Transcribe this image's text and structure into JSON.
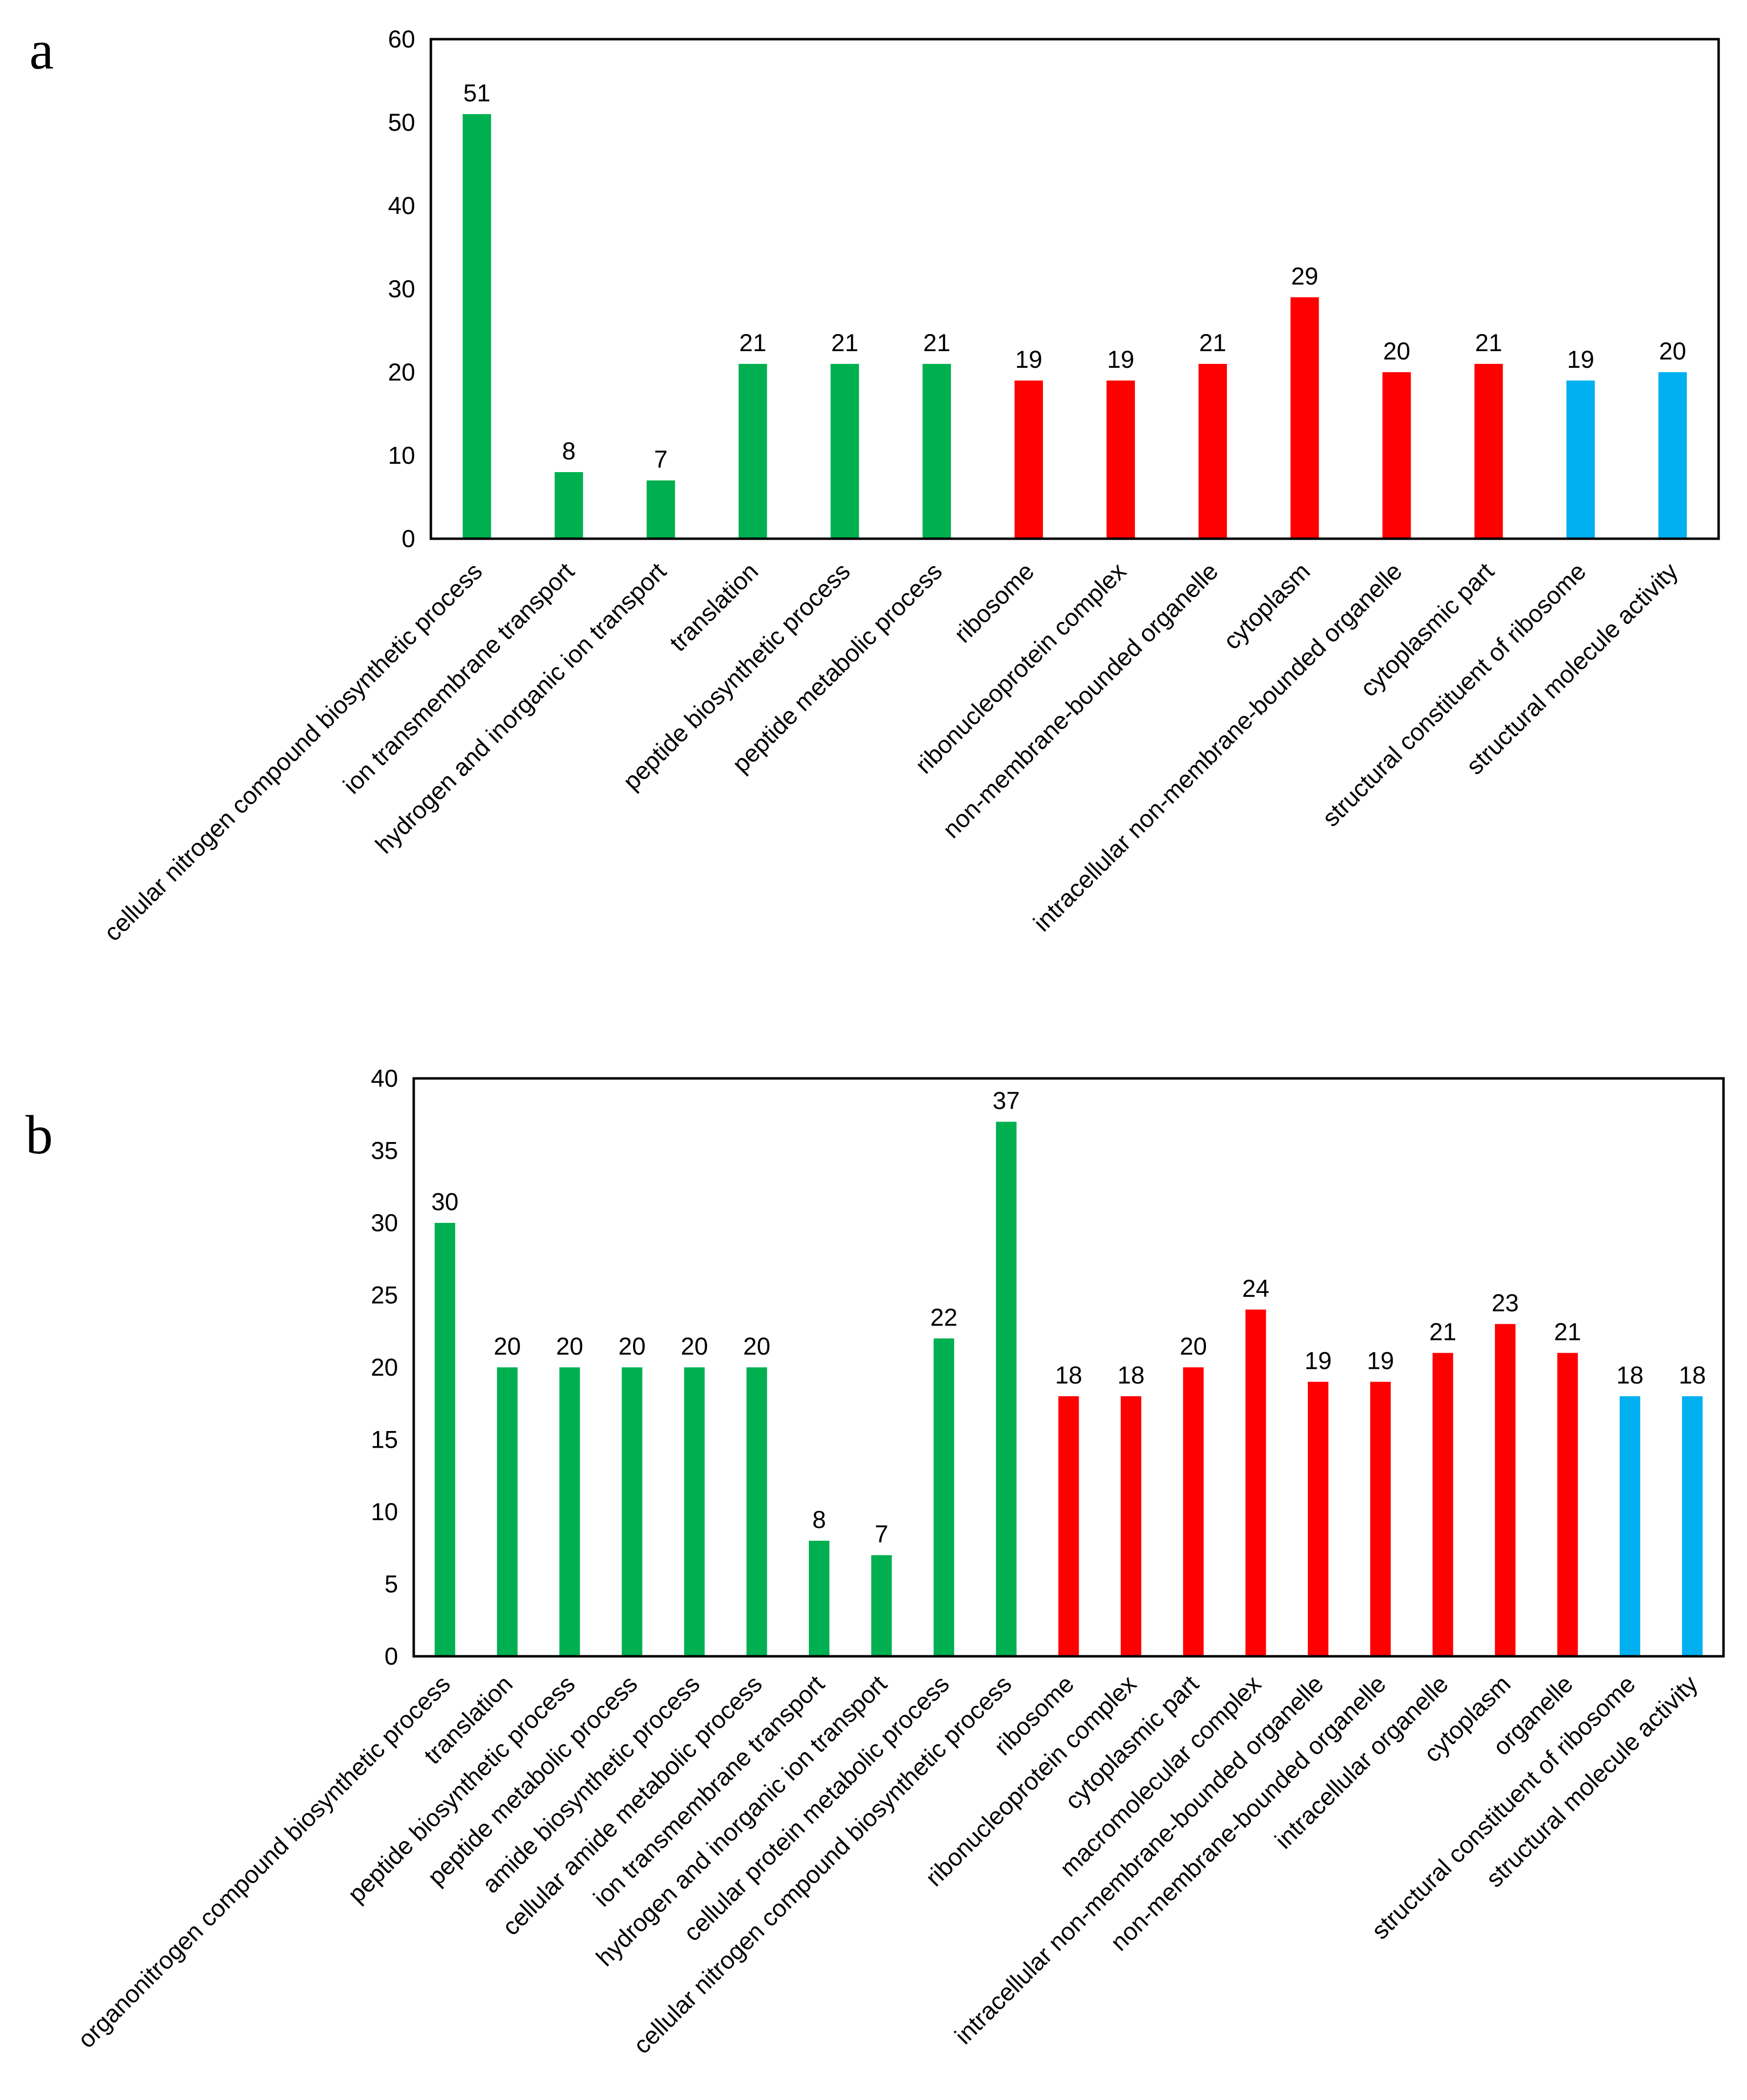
{
  "chart_data": [
    {
      "panel": "a",
      "type": "bar",
      "title": "",
      "xlabel": "",
      "ylabel": "",
      "ylim": [
        0,
        60
      ],
      "yticks": [
        0,
        10,
        20,
        30,
        40,
        50,
        60
      ],
      "grid": false,
      "categories": [
        "cellular nitrogen compound biosynthetic process",
        "ion transmembrane transport",
        "hydrogen and inorganic ion transport",
        "translation",
        "peptide biosynthetic process",
        "peptide metabolic process",
        "ribosome",
        "ribonucleoprotein complex",
        "non-membrane-bounded organelle",
        "cytoplasm",
        "intracellular non-membrane-bounded organelle",
        "cytoplasmic part",
        "structural constituent of ribosome",
        "structural molecule activity"
      ],
      "values": [
        51,
        8,
        7,
        21,
        21,
        21,
        19,
        19,
        21,
        29,
        20,
        21,
        19,
        20
      ],
      "groups": [
        "bp",
        "bp",
        "bp",
        "bp",
        "bp",
        "bp",
        "cc",
        "cc",
        "cc",
        "cc",
        "cc",
        "cc",
        "mf",
        "mf"
      ]
    },
    {
      "panel": "b",
      "type": "bar",
      "title": "",
      "xlabel": "",
      "ylabel": "",
      "ylim": [
        0,
        40
      ],
      "yticks": [
        0,
        5,
        10,
        15,
        20,
        25,
        30,
        35,
        40
      ],
      "grid": false,
      "categories": [
        "organonitrogen compound biosynthetic process",
        "translation",
        "peptide biosynthetic process",
        "peptide metabolic process",
        "amide biosynthetic process",
        "cellular amide metabolic process",
        "ion transmembrane transport",
        "hydrogen and inorganic ion transport",
        "cellular protein metabolic process",
        "cellular nitrogen compound biosynthetic process",
        "ribosome",
        "ribonucleoprotein complex",
        "cytoplasmic part",
        "macromolecular complex",
        "intracellular non-membrane-bounded organelle",
        "non-membrane-bounded organelle",
        "intracellular organelle",
        "cytoplasm",
        "organelle",
        "structural constituent of ribosome",
        "structural molecule activity"
      ],
      "values": [
        30,
        20,
        20,
        20,
        20,
        20,
        8,
        7,
        22,
        37,
        18,
        18,
        20,
        24,
        19,
        19,
        21,
        23,
        21,
        18,
        18
      ],
      "groups": [
        "bp",
        "bp",
        "bp",
        "bp",
        "bp",
        "bp",
        "bp",
        "bp",
        "bp",
        "bp",
        "cc",
        "cc",
        "cc",
        "cc",
        "cc",
        "cc",
        "cc",
        "cc",
        "cc",
        "mf",
        "mf"
      ]
    }
  ],
  "group_colors": {
    "bp": "#00b050",
    "cc": "#ff0000",
    "mf": "#00b0f0"
  }
}
